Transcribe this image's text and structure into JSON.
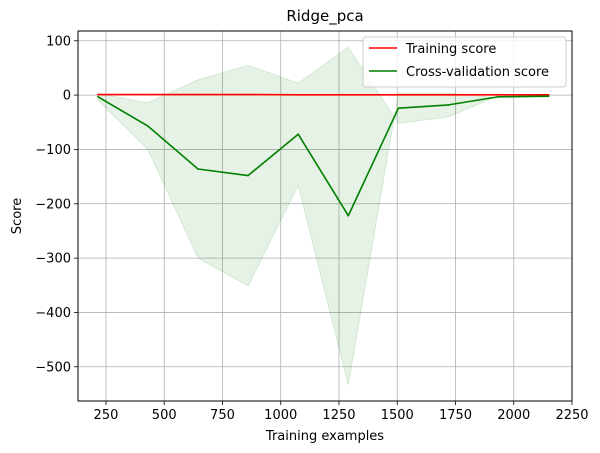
{
  "chart_data": {
    "type": "line",
    "title": "Ridge_pca",
    "xlabel": "Training examples",
    "ylabel": "Score",
    "xlim": [
      130,
      2250
    ],
    "ylim": [
      -563,
      118
    ],
    "xticks": [
      250,
      500,
      750,
      1000,
      1250,
      1500,
      1750,
      2000,
      2250
    ],
    "yticks": [
      100,
      0,
      -100,
      -200,
      -300,
      -400,
      -500
    ],
    "grid": true,
    "legend_position": "top-right",
    "x": [
      215,
      430,
      645,
      860,
      1075,
      1290,
      1505,
      1720,
      1935,
      2150
    ],
    "series": [
      {
        "name": "Training score",
        "color": "#ff0000",
        "values": [
          1,
          1,
          1,
          1,
          0.5,
          0.5,
          0.5,
          0.5,
          0.5,
          0.5
        ]
      },
      {
        "name": "Cross-validation score",
        "color": "#008000",
        "values": [
          -3,
          -57,
          -136,
          -148,
          -72,
          -222,
          -24,
          -18,
          -3,
          -2
        ],
        "band_upper": [
          3,
          -14,
          28,
          55,
          22,
          88,
          -52,
          -40,
          -1,
          -1
        ],
        "band_lower": [
          -9,
          -100,
          -300,
          -351,
          -166,
          -533,
          4,
          4,
          -5,
          -3
        ],
        "band_color": "#008000",
        "band_opacity": 0.1
      }
    ]
  }
}
